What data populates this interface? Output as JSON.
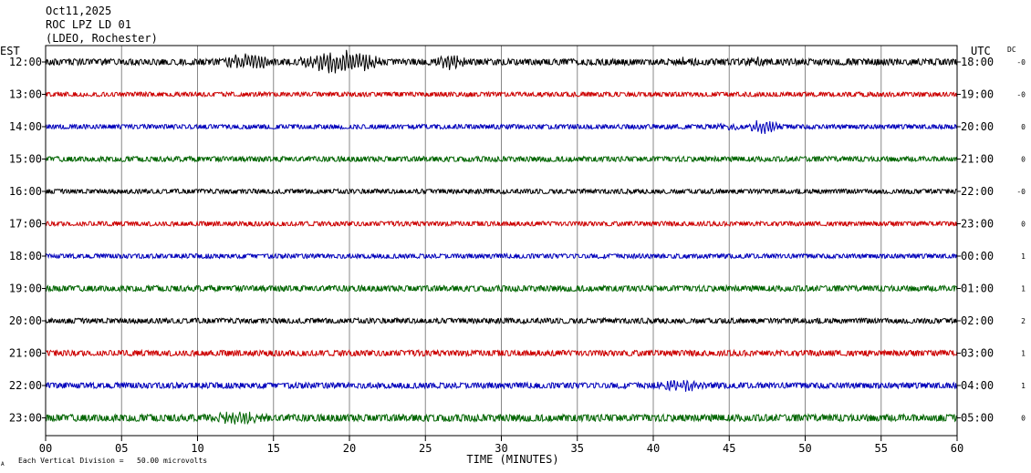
{
  "header": {
    "date": "Oct11,2025",
    "station": "ROC LPZ LD 01",
    "network": "(LDEO, Rochester)"
  },
  "labels": {
    "left_tz": "EST",
    "right_tz": "UTC",
    "dc": "DC",
    "x_axis_title": "TIME (MINUTES)",
    "scale_note": "Each Vertical Division =   50.00 microvolts",
    "corner_mark": "A"
  },
  "colors": {
    "black": "#000000",
    "red": "#cc0000",
    "blue": "#0000bb",
    "green": "#006400",
    "grid": "#888888"
  },
  "chart_data": {
    "type": "line",
    "title": "ROC LPZ LD 01",
    "xlabel": "TIME (MINUTES)",
    "ylabel": "",
    "xlim": [
      0,
      60
    ],
    "x_ticks": [
      "00",
      "05",
      "10",
      "15",
      "20",
      "25",
      "30",
      "35",
      "40",
      "45",
      "50",
      "55",
      "60"
    ],
    "grid": "vertical every 5 minutes",
    "rows": [
      {
        "est": "12:00",
        "utc": "18:00",
        "dc": "-0",
        "color": "black",
        "noise": 1.1,
        "events": [
          [
            11.5,
            15.0,
            2.8
          ],
          [
            16.5,
            22.5,
            4.2
          ],
          [
            25.5,
            28.0,
            2.4
          ],
          [
            41.5,
            43.0,
            1.2
          ],
          [
            46.0,
            47.5,
            1.2
          ]
        ]
      },
      {
        "est": "13:00",
        "utc": "19:00",
        "dc": "-0",
        "color": "red",
        "noise": 0.8,
        "events": []
      },
      {
        "est": "14:00",
        "utc": "20:00",
        "dc": "0",
        "color": "blue",
        "noise": 0.8,
        "events": [
          [
            46.0,
            48.5,
            2.6
          ],
          [
            44.0,
            46.0,
            0.9
          ]
        ]
      },
      {
        "est": "15:00",
        "utc": "21:00",
        "dc": "0",
        "color": "green",
        "noise": 0.9,
        "events": []
      },
      {
        "est": "16:00",
        "utc": "22:00",
        "dc": "-0",
        "color": "black",
        "noise": 0.8,
        "events": []
      },
      {
        "est": "17:00",
        "utc": "23:00",
        "dc": "0",
        "color": "red",
        "noise": 0.8,
        "events": []
      },
      {
        "est": "18:00",
        "utc": "00:00",
        "dc": "1",
        "color": "blue",
        "noise": 0.8,
        "events": []
      },
      {
        "est": "19:00",
        "utc": "01:00",
        "dc": "1",
        "color": "green",
        "noise": 1.0,
        "events": []
      },
      {
        "est": "20:00",
        "utc": "02:00",
        "dc": "2",
        "color": "black",
        "noise": 0.9,
        "events": []
      },
      {
        "est": "21:00",
        "utc": "03:00",
        "dc": "1",
        "color": "red",
        "noise": 1.0,
        "events": []
      },
      {
        "est": "22:00",
        "utc": "04:00",
        "dc": "1",
        "color": "blue",
        "noise": 1.0,
        "events": [
          [
            40.0,
            43.5,
            1.8
          ]
        ]
      },
      {
        "est": "23:00",
        "utc": "05:00",
        "dc": "0",
        "color": "green",
        "noise": 1.2,
        "events": [
          [
            10.5,
            15.0,
            1.6
          ]
        ]
      }
    ]
  }
}
